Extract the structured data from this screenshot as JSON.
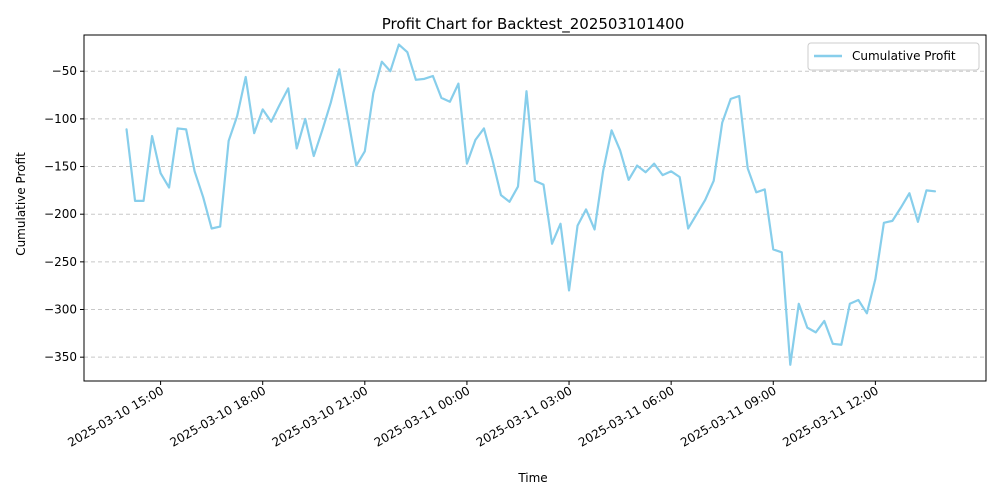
{
  "chart_data": {
    "type": "line",
    "title": "Profit Chart for Backtest_202503101400",
    "xlabel": "Time",
    "ylabel": "Cumulative Profit",
    "x_axis_type": "datetime",
    "xlim": [
      "2025-03-10 12:45",
      "2025-03-11 15:15"
    ],
    "ylim": [
      -375,
      -12
    ],
    "yticks": [
      -350,
      -300,
      -250,
      -200,
      -150,
      -100,
      -50
    ],
    "xticks": [
      {
        "t": "2025-03-10 15:00",
        "label": "2025-03-10 15:00"
      },
      {
        "t": "2025-03-10 18:00",
        "label": "2025-03-10 18:00"
      },
      {
        "t": "2025-03-10 21:00",
        "label": "2025-03-10 21:00"
      },
      {
        "t": "2025-03-11 00:00",
        "label": "2025-03-11 00:00"
      },
      {
        "t": "2025-03-11 03:00",
        "label": "2025-03-11 03:00"
      },
      {
        "t": "2025-03-11 06:00",
        "label": "2025-03-11 06:00"
      },
      {
        "t": "2025-03-11 09:00",
        "label": "2025-03-11 09:00"
      },
      {
        "t": "2025-03-11 12:00",
        "label": "2025-03-11 12:00"
      }
    ],
    "grid": "horizontal-dashed",
    "legend_position": "top-right",
    "series": [
      {
        "name": "Cumulative Profit",
        "color": "#87ceeb",
        "points": [
          [
            "2025-03-10 14:00",
            -111
          ],
          [
            "2025-03-10 14:15",
            -186
          ],
          [
            "2025-03-10 14:30",
            -186
          ],
          [
            "2025-03-10 14:45",
            -118
          ],
          [
            "2025-03-10 15:00",
            -157
          ],
          [
            "2025-03-10 15:15",
            -172
          ],
          [
            "2025-03-10 15:30",
            -110
          ],
          [
            "2025-03-10 15:45",
            -111
          ],
          [
            "2025-03-10 16:00",
            -155
          ],
          [
            "2025-03-10 16:15",
            -182
          ],
          [
            "2025-03-10 16:30",
            -215
          ],
          [
            "2025-03-10 16:45",
            -213
          ],
          [
            "2025-03-10 17:00",
            -123
          ],
          [
            "2025-03-10 17:15",
            -97
          ],
          [
            "2025-03-10 17:30",
            -56
          ],
          [
            "2025-03-10 17:45",
            -115
          ],
          [
            "2025-03-10 18:00",
            -90
          ],
          [
            "2025-03-10 18:15",
            -103
          ],
          [
            "2025-03-10 18:30",
            -85
          ],
          [
            "2025-03-10 18:45",
            -68
          ],
          [
            "2025-03-10 19:00",
            -131
          ],
          [
            "2025-03-10 19:15",
            -100
          ],
          [
            "2025-03-10 19:30",
            -139
          ],
          [
            "2025-03-10 19:45",
            -112
          ],
          [
            "2025-03-10 20:00",
            -83
          ],
          [
            "2025-03-10 20:15",
            -48
          ],
          [
            "2025-03-10 20:30",
            -98
          ],
          [
            "2025-03-10 20:45",
            -149
          ],
          [
            "2025-03-10 21:00",
            -134
          ],
          [
            "2025-03-10 21:15",
            -73
          ],
          [
            "2025-03-10 21:30",
            -40
          ],
          [
            "2025-03-10 21:45",
            -50
          ],
          [
            "2025-03-10 22:00",
            -22
          ],
          [
            "2025-03-10 22:15",
            -30
          ],
          [
            "2025-03-10 22:30",
            -59
          ],
          [
            "2025-03-10 22:45",
            -58
          ],
          [
            "2025-03-10 23:00",
            -55
          ],
          [
            "2025-03-10 23:15",
            -78
          ],
          [
            "2025-03-10 23:30",
            -82
          ],
          [
            "2025-03-10 23:45",
            -63
          ],
          [
            "2025-03-11 00:00",
            -147
          ],
          [
            "2025-03-11 00:15",
            -122
          ],
          [
            "2025-03-11 00:30",
            -110
          ],
          [
            "2025-03-11 00:45",
            -143
          ],
          [
            "2025-03-11 01:00",
            -180
          ],
          [
            "2025-03-11 01:15",
            -187
          ],
          [
            "2025-03-11 01:30",
            -171
          ],
          [
            "2025-03-11 01:45",
            -71
          ],
          [
            "2025-03-11 02:00",
            -165
          ],
          [
            "2025-03-11 02:15",
            -169
          ],
          [
            "2025-03-11 02:30",
            -231
          ],
          [
            "2025-03-11 02:45",
            -210
          ],
          [
            "2025-03-11 03:00",
            -280
          ],
          [
            "2025-03-11 03:15",
            -212
          ],
          [
            "2025-03-11 03:30",
            -195
          ],
          [
            "2025-03-11 03:45",
            -216
          ],
          [
            "2025-03-11 04:00",
            -155
          ],
          [
            "2025-03-11 04:15",
            -112
          ],
          [
            "2025-03-11 04:30",
            -133
          ],
          [
            "2025-03-11 04:45",
            -164
          ],
          [
            "2025-03-11 05:00",
            -149
          ],
          [
            "2025-03-11 05:15",
            -156
          ],
          [
            "2025-03-11 05:30",
            -147
          ],
          [
            "2025-03-11 05:45",
            -159
          ],
          [
            "2025-03-11 06:00",
            -155
          ],
          [
            "2025-03-11 06:15",
            -161
          ],
          [
            "2025-03-11 06:30",
            -215
          ],
          [
            "2025-03-11 06:45",
            -200
          ],
          [
            "2025-03-11 07:00",
            -185
          ],
          [
            "2025-03-11 07:15",
            -165
          ],
          [
            "2025-03-11 07:30",
            -104
          ],
          [
            "2025-03-11 07:45",
            -79
          ],
          [
            "2025-03-11 08:00",
            -76
          ],
          [
            "2025-03-11 08:15",
            -152
          ],
          [
            "2025-03-11 08:30",
            -177
          ],
          [
            "2025-03-11 08:45",
            -174
          ],
          [
            "2025-03-11 09:00",
            -237
          ],
          [
            "2025-03-11 09:15",
            -240
          ],
          [
            "2025-03-11 09:30",
            -358
          ],
          [
            "2025-03-11 09:45",
            -294
          ],
          [
            "2025-03-11 10:00",
            -319
          ],
          [
            "2025-03-11 10:15",
            -324
          ],
          [
            "2025-03-11 10:30",
            -312
          ],
          [
            "2025-03-11 10:45",
            -336
          ],
          [
            "2025-03-11 11:00",
            -337
          ],
          [
            "2025-03-11 11:15",
            -294
          ],
          [
            "2025-03-11 11:30",
            -290
          ],
          [
            "2025-03-11 11:45",
            -304
          ],
          [
            "2025-03-11 12:00",
            -268
          ],
          [
            "2025-03-11 12:15",
            -209
          ],
          [
            "2025-03-11 12:30",
            -207
          ],
          [
            "2025-03-11 12:45",
            -193
          ],
          [
            "2025-03-11 13:00",
            -178
          ],
          [
            "2025-03-11 13:15",
            -208
          ],
          [
            "2025-03-11 13:30",
            -175
          ],
          [
            "2025-03-11 13:45",
            -176
          ]
        ]
      }
    ]
  }
}
